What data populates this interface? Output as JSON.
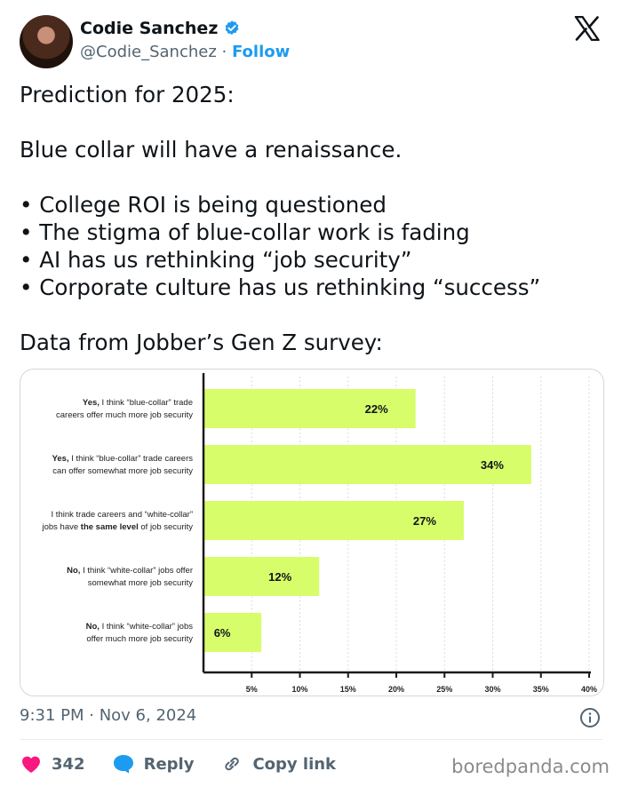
{
  "author": {
    "name": "Codie Sanchez",
    "handle": "@Codie_Sanchez",
    "separator": "·",
    "follow_label": "Follow",
    "verified_color": "#1d9bf0"
  },
  "tweet": {
    "lines": [
      "Prediction for 2025:",
      "",
      "Blue collar will have a renaissance.",
      "",
      "• College ROI is being questioned",
      "• The stigma of blue-collar work is fading",
      "• AI has us rethinking “job security”",
      "• Corporate culture has us rethinking “success”",
      "",
      "Data from Jobber’s Gen Z survey:"
    ]
  },
  "chart_data": {
    "type": "bar",
    "orientation": "horizontal",
    "bar_color": "#d7fd6b",
    "categories": [
      {
        "bold": "Yes,",
        "rest": " I think “blue-collar” trade",
        "line2": "careers offer much more job security"
      },
      {
        "bold": "Yes,",
        "rest": " I think “blue-collar” trade careers",
        "line2": "can offer somewhat more job security"
      },
      {
        "bold": "",
        "rest": "I think trade careers and “white-collar”",
        "line2_pre": "jobs have ",
        "line2_bold": "the same level",
        "line2_post": " of job security"
      },
      {
        "bold": "No,",
        "rest": " I think “white-collar” jobs offer",
        "line2": "somewhat more job security"
      },
      {
        "bold": "No,",
        "rest": " I think “white-collar” jobs",
        "line2": "offer much more job security"
      }
    ],
    "values": [
      22,
      34,
      27,
      12,
      6
    ],
    "value_labels": [
      "22%",
      "34%",
      "27%",
      "12%",
      "6%"
    ],
    "xlim": [
      0,
      40
    ],
    "xticks": [
      "5%",
      "10%",
      "15%",
      "20%",
      "25%",
      "30%",
      "35%",
      "40%"
    ],
    "xtick_values": [
      5,
      10,
      15,
      20,
      25,
      30,
      35,
      40
    ],
    "grid": "dotted vertical"
  },
  "meta": {
    "time": "9:31 PM · Nov 6, 2024"
  },
  "actions": {
    "like_count": "342",
    "like_color": "#f91880",
    "reply_label": "Reply",
    "reply_color": "#1d9bf0",
    "copy_label": "Copy link"
  },
  "watermark": "boredpanda.com"
}
